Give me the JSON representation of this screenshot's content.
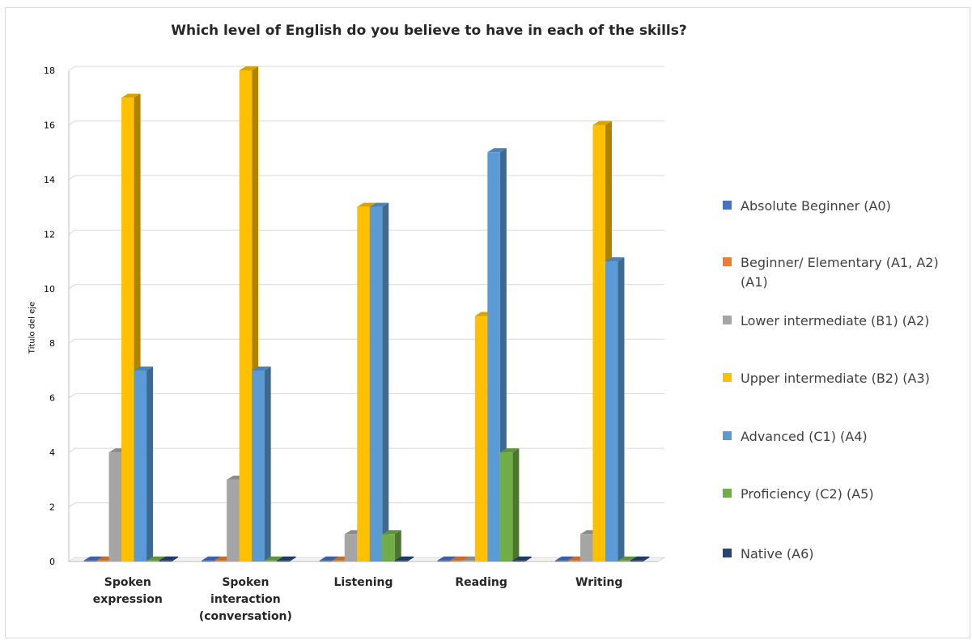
{
  "chart_data": {
    "type": "bar",
    "title": "Which level of English do you believe to have in each of the skills?",
    "ylabel": "Titulo del eje",
    "xlabel": "",
    "ylim": [
      0,
      18
    ],
    "yticks": [
      0,
      2,
      4,
      6,
      8,
      10,
      12,
      14,
      16,
      18
    ],
    "grid": true,
    "legend_position": "right",
    "categories": [
      "Spoken expression",
      "Spoken interaction (conversation)",
      "Listening",
      "Reading",
      "Writing"
    ],
    "series": [
      {
        "name": "Absolute  Beginner (A0)",
        "color": "#4472c4",
        "values": [
          0,
          0,
          0,
          0,
          0
        ]
      },
      {
        "name": "Beginner/ Elementary (A1, A2) (A1)",
        "color": "#ed7d31",
        "values": [
          0,
          0,
          0,
          0,
          0
        ]
      },
      {
        "name": "Lower intermediate (B1) (A2)",
        "color": "#a5a5a5",
        "values": [
          4,
          3,
          1,
          0,
          1
        ]
      },
      {
        "name": "Upper intermediate (B2) (A3)",
        "color": "#ffc000",
        "values": [
          17,
          18,
          13,
          9,
          16
        ]
      },
      {
        "name": "Advanced (C1) (A4)",
        "color": "#5b9bd5",
        "values": [
          7,
          7,
          13,
          15,
          11
        ]
      },
      {
        "name": "Proficiency (C2) (A5)",
        "color": "#70ad47",
        "values": [
          0,
          0,
          1,
          4,
          0
        ]
      },
      {
        "name": "Native (A6)",
        "color": "#264478",
        "values": [
          0,
          0,
          0,
          0,
          0
        ]
      }
    ]
  }
}
